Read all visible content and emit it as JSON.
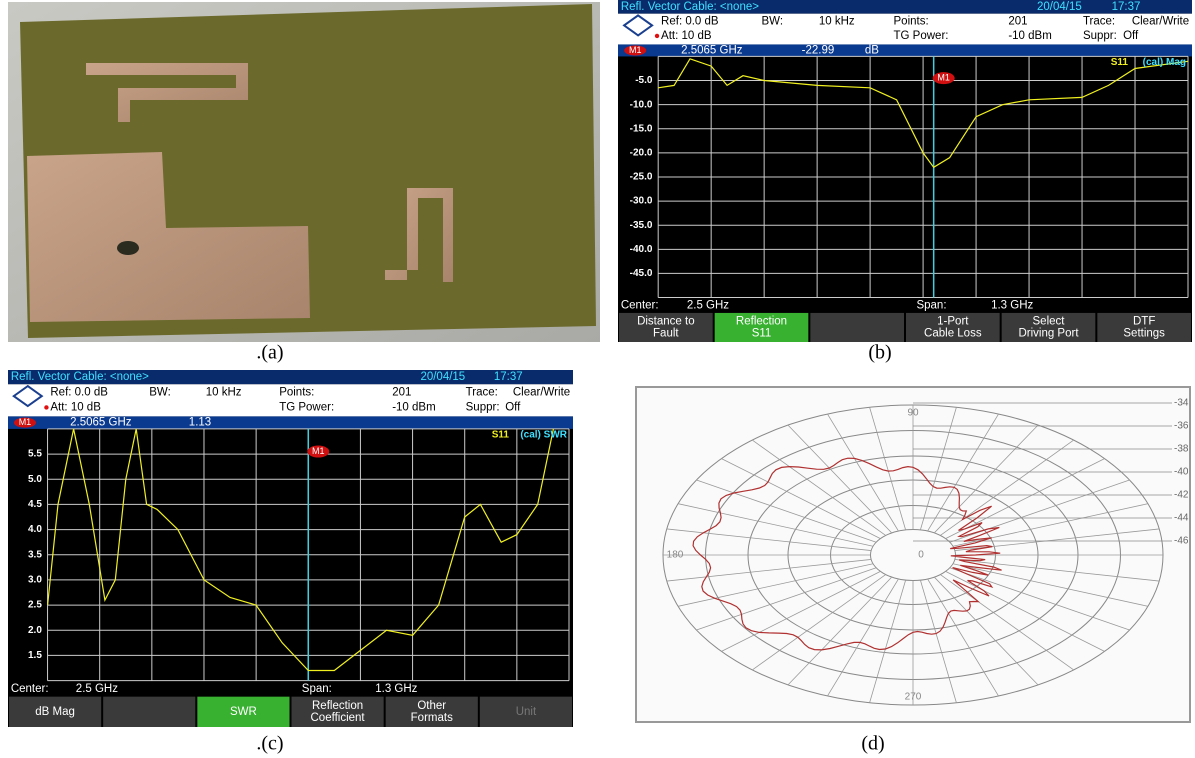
{
  "figure": {
    "a": {
      "caption": ".(a)"
    },
    "b": {
      "caption": "(b)",
      "screen": {
        "title": "Refl. Vector  Cable: <none>",
        "date": "20/04/15",
        "time": "17:37",
        "ref": "Ref: 0.0 dB",
        "bw_label": "BW:",
        "bw": "10 kHz",
        "points_label": "Points:",
        "points": "201",
        "trace_label": "Trace:",
        "trace": "Clear/Write",
        "att": "Att: 10 dB",
        "tg_label": "TG Power:",
        "tg": "-10 dBm",
        "suppr_label": "Suppr:",
        "suppr": "Off",
        "marker": "M1",
        "marker_freq": "2.5065 GHz",
        "marker_value": "-22.99",
        "marker_unit": "dB",
        "trace_name": "S11",
        "trace_mode": "(cal) Mag",
        "y_labels": [
          "-5.0",
          "-10.0",
          "-15.0",
          "-20.0",
          "-25.0",
          "-30.0",
          "-35.0",
          "-40.0",
          "-45.0"
        ],
        "center_label": "Center:",
        "center": "2.5 GHz",
        "span_label": "Span:",
        "span": "1.3 GHz",
        "softkeys": [
          {
            "lines": [
              "Distance to",
              "Fault"
            ]
          },
          {
            "lines": [
              "Reflection",
              "S11"
            ],
            "active": true
          },
          null,
          {
            "lines": [
              "1-Port",
              "Cable Loss"
            ]
          },
          {
            "lines": [
              "Select",
              "Driving Port"
            ]
          },
          {
            "lines": [
              "DTF",
              "Settings"
            ]
          }
        ]
      }
    },
    "c": {
      "caption": ".(c)",
      "screen": {
        "title": "Refl. Vector  Cable: <none>",
        "date": "20/04/15",
        "time": "17:37",
        "ref": "Ref: 0.0 dB",
        "bw_label": "BW:",
        "bw": "10 kHz",
        "points_label": "Points:",
        "points": "201",
        "trace_label": "Trace:",
        "trace": "Clear/Write",
        "att": "Att: 10 dB",
        "tg_label": "TG Power:",
        "tg": "-10 dBm",
        "suppr_label": "Suppr:",
        "suppr": "Off",
        "marker": "M1",
        "marker_freq": "2.5065 GHz",
        "marker_value": "1.13",
        "trace_name": "S11",
        "trace_mode": "(cal) SWR",
        "y_labels": [
          "5.5",
          "5.0",
          "4.5",
          "4.0",
          "3.5",
          "3.0",
          "2.5",
          "2.0",
          "1.5"
        ],
        "center_label": "Center:",
        "center": "2.5 GHz",
        "span_label": "Span:",
        "span": "1.3 GHz",
        "softkeys": [
          {
            "lines": [
              "dB Mag"
            ]
          },
          null,
          {
            "lines": [
              "SWR"
            ],
            "active": true
          },
          {
            "lines": [
              "Reflection",
              "Coefficient"
            ]
          },
          {
            "lines": [
              "Other",
              "Formats"
            ]
          },
          {
            "lines": [
              "Unit"
            ],
            "disabled": true
          }
        ]
      }
    },
    "d": {
      "caption": "(d)",
      "angle_labels": [
        "90",
        "180",
        "0",
        "270"
      ],
      "scale_labels": [
        "-34",
        "-36",
        "-38",
        "-40",
        "-42",
        "-44",
        "-46"
      ]
    }
  }
}
